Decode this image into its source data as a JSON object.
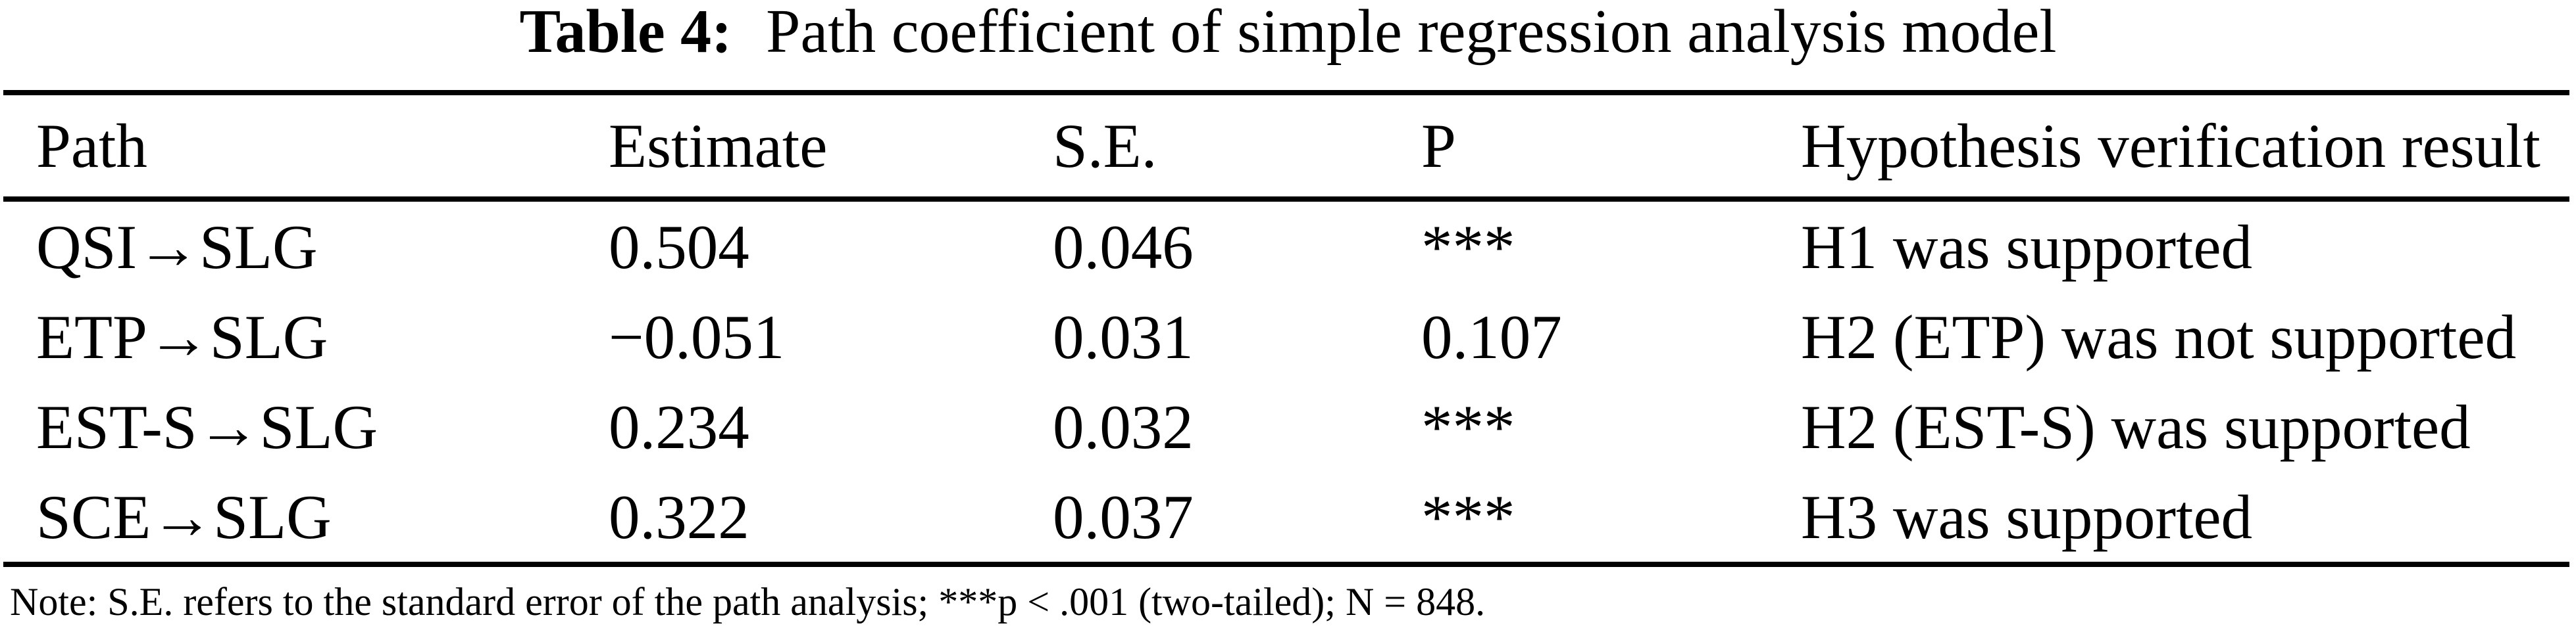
{
  "title": {
    "label": "Table 4:",
    "text": "Path coefficient of simple regression analysis model"
  },
  "table": {
    "columns": [
      "Path",
      "Estimate",
      "S.E.",
      "P",
      "Hypothesis verification result"
    ],
    "rows": [
      {
        "path": "QSI→SLG",
        "estimate": "0.504",
        "se": "0.046",
        "p": "***",
        "result": "H1 was supported"
      },
      {
        "path": "ETP→SLG",
        "estimate": "−0.051",
        "se": "0.031",
        "p": "0.107",
        "result": "H2 (ETP) was not supported"
      },
      {
        "path": "EST-S→SLG",
        "estimate": "0.234",
        "se": "0.032",
        "p": "***",
        "result": "H2 (EST-S) was supported"
      },
      {
        "path": "SCE→SLG",
        "estimate": "0.322",
        "se": "0.037",
        "p": "***",
        "result": "H3 was supported"
      }
    ]
  },
  "note": "Note: S.E. refers to the standard error of the path analysis; ***p < .001 (two-tailed); N = 848.",
  "colors": {
    "text": "#000000",
    "background": "#ffffff",
    "rule": "#000000"
  }
}
